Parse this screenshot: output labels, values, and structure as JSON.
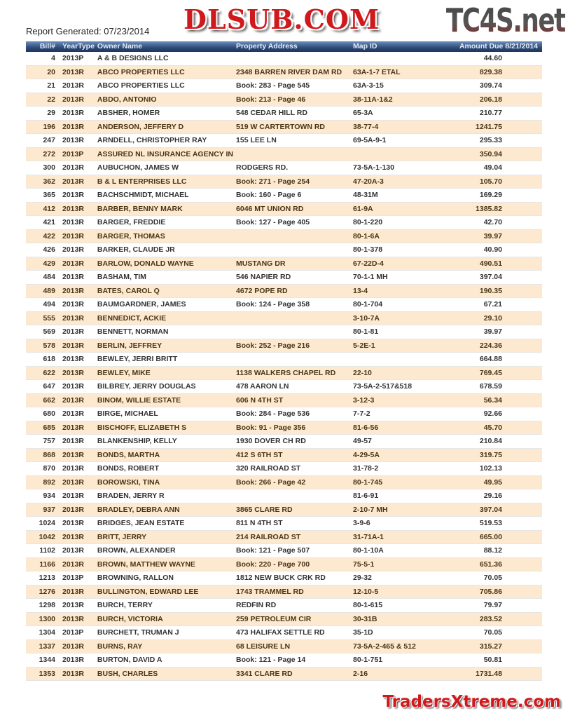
{
  "logo_text": "TC4S.net",
  "report_generated": "Report Generated: 07/23/2014",
  "columns": {
    "bill": "Bill#",
    "year_type": "YearType",
    "owner": "Owner Name",
    "address": "Property Address",
    "map_id": "Map ID",
    "amount": "Amount Due  8/21/2014"
  },
  "rows": [
    [
      "4",
      "2013P",
      "A & B DESIGNS LLC",
      "",
      "",
      "44.60"
    ],
    [
      "20",
      "2013R",
      "ABCO PROPERTIES LLC",
      "2348 BARREN RIVER DAM RD",
      "63A-1-7 ETAL",
      "829.38"
    ],
    [
      "21",
      "2013R",
      "ABCO PROPERTIES LLC",
      "Book: 283 - Page 545",
      "63A-3-15",
      "309.74"
    ],
    [
      "22",
      "2013R",
      "ABDO, ANTONIO",
      "Book: 213 - Page 46",
      "38-11A-1&2",
      "206.18"
    ],
    [
      "29",
      "2013R",
      "ABSHER, HOMER",
      "548 CEDAR HILL RD",
      "65-3A",
      "210.77"
    ],
    [
      "196",
      "2013R",
      "ANDERSON, JEFFERY D",
      "519 W CARTERTOWN RD",
      "38-77-4",
      "1241.75"
    ],
    [
      "247",
      "2013R",
      "ARNDELL, CHRISTOPHER RAY",
      "155 LEE LN",
      "69-5A-9-1",
      "295.33"
    ],
    [
      "272",
      "2013P",
      "ASSURED NL INSURANCE AGENCY IN",
      "",
      "",
      "350.94"
    ],
    [
      "300",
      "2013R",
      "AUBUCHON, JAMES W",
      "RODGERS RD.",
      "73-5A-1-130",
      "49.04"
    ],
    [
      "362",
      "2013R",
      "B & L ENTERPRISES LLC",
      "Book: 271 - Page 254",
      "47-20A-3",
      "105.70"
    ],
    [
      "365",
      "2013R",
      "BACHSCHMIDT, MICHAEL",
      "Book: 160 - Page 6",
      "48-31M",
      "169.29"
    ],
    [
      "412",
      "2013R",
      "BARBER, BENNY MARK",
      "6046 MT UNION RD",
      "61-9A",
      "1385.82"
    ],
    [
      "421",
      "2013R",
      "BARGER, FREDDIE",
      "Book: 127 - Page 405",
      "80-1-220",
      "42.70"
    ],
    [
      "422",
      "2013R",
      "BARGER, THOMAS",
      "",
      "80-1-6A",
      "39.97"
    ],
    [
      "426",
      "2013R",
      "BARKER, CLAUDE JR",
      "",
      "80-1-378",
      "40.90"
    ],
    [
      "429",
      "2013R",
      "BARLOW, DONALD WAYNE",
      "MUSTANG DR",
      "67-22D-4",
      "490.51"
    ],
    [
      "484",
      "2013R",
      "BASHAM, TIM",
      "546 NAPIER RD",
      "70-1-1 MH",
      "397.04"
    ],
    [
      "489",
      "2013R",
      "BATES, CAROL Q",
      "4672 POPE RD",
      "13-4",
      "190.35"
    ],
    [
      "494",
      "2013R",
      "BAUMGARDNER, JAMES",
      "Book: 124 - Page 358",
      "80-1-704",
      "67.21"
    ],
    [
      "555",
      "2013R",
      "BENNEDICT, ACKIE",
      "",
      "3-10-7A",
      "29.10"
    ],
    [
      "569",
      "2013R",
      "BENNETT, NORMAN",
      "",
      "80-1-81",
      "39.97"
    ],
    [
      "578",
      "2013R",
      "BERLIN, JEFFREY",
      "Book: 252 - Page 216",
      "5-2E-1",
      "224.36"
    ],
    [
      "618",
      "2013R",
      "BEWLEY, JERRI BRITT",
      "",
      "",
      "664.88"
    ],
    [
      "622",
      "2013R",
      "BEWLEY, MIKE",
      "1138 WALKERS CHAPEL RD",
      "22-10",
      "769.45"
    ],
    [
      "647",
      "2013R",
      "BILBREY, JERRY DOUGLAS",
      "478 AARON LN",
      "73-5A-2-517&518",
      "678.59"
    ],
    [
      "662",
      "2013R",
      "BINOM, WILLIE ESTATE",
      "606 N 4TH ST",
      "3-12-3",
      "56.34"
    ],
    [
      "680",
      "2013R",
      "BIRGE, MICHAEL",
      "Book: 284 - Page 536",
      "7-7-2",
      "92.66"
    ],
    [
      "685",
      "2013R",
      "BISCHOFF, ELIZABETH S",
      "Book: 91 - Page 356",
      "81-6-56",
      "45.70"
    ],
    [
      "757",
      "2013R",
      "BLANKENSHIP, KELLY",
      "1930 DOVER CH RD",
      "49-57",
      "210.84"
    ],
    [
      "868",
      "2013R",
      "BONDS, MARTHA",
      "412 S 6TH ST",
      "4-29-5A",
      "319.75"
    ],
    [
      "870",
      "2013R",
      "BONDS, ROBERT",
      "320 RAILROAD ST",
      "31-78-2",
      "102.13"
    ],
    [
      "892",
      "2013R",
      "BOROWSKI, TINA",
      "Book: 266 - Page 42",
      "80-1-745",
      "49.95"
    ],
    [
      "934",
      "2013R",
      "BRADEN, JERRY R",
      "",
      "81-6-91",
      "29.16"
    ],
    [
      "937",
      "2013R",
      "BRADLEY, DEBRA ANN",
      "3865 CLARE RD",
      "2-10-7 MH",
      "397.04"
    ],
    [
      "1024",
      "2013R",
      "BRIDGES, JEAN ESTATE",
      "811 N 4TH ST",
      "3-9-6",
      "519.53"
    ],
    [
      "1042",
      "2013R",
      "BRITT, JERRY",
      "214 RAILROAD ST",
      "31-71A-1",
      "665.00"
    ],
    [
      "1102",
      "2013R",
      "BROWN, ALEXANDER",
      "Book: 121 - Page 507",
      "80-1-10A",
      "88.12"
    ],
    [
      "1166",
      "2013R",
      "BROWN, MATTHEW WAYNE",
      "Book: 220 - Page 700",
      "75-5-1",
      "651.36"
    ],
    [
      "1213",
      "2013P",
      "BROWNING, RALLON",
      "1812 NEW BUCK CRK RD",
      "29-32",
      "70.05"
    ],
    [
      "1276",
      "2013R",
      "BULLINGTON, EDWARD LEE",
      "1743 TRAMMEL RD",
      "12-10-5",
      "705.86"
    ],
    [
      "1298",
      "2013R",
      "BURCH, TERRY",
      "REDFIN RD",
      "80-1-615",
      "79.97"
    ],
    [
      "1300",
      "2013R",
      "BURCH, VICTORIA",
      "259 PETROLEUM CIR",
      "30-31B",
      "283.52"
    ],
    [
      "1304",
      "2013P",
      "BURCHETT, TRUMAN J",
      "473 HALIFAX SETTLE RD",
      "35-1D",
      "70.05"
    ],
    [
      "1337",
      "2013R",
      "BURNS, RAY",
      "68 LEISURE LN",
      "73-5A-2-465 & 512",
      "315.27"
    ],
    [
      "1344",
      "2013R",
      "BURTON, DAVID A",
      "Book: 121 - Page 14",
      "80-1-751",
      "50.81"
    ],
    [
      "1353",
      "2013R",
      "BUSH, CHARLES",
      "3341 CLARE RD",
      "2-16",
      "1731.48"
    ]
  ],
  "watermark_center": "DLSUB.COM",
  "watermark_footer": "TradersXtreme.com",
  "colors": {
    "header_bg": "#2d4a78",
    "alt_row": "#fde9cf",
    "watermark": "#d0191c"
  }
}
